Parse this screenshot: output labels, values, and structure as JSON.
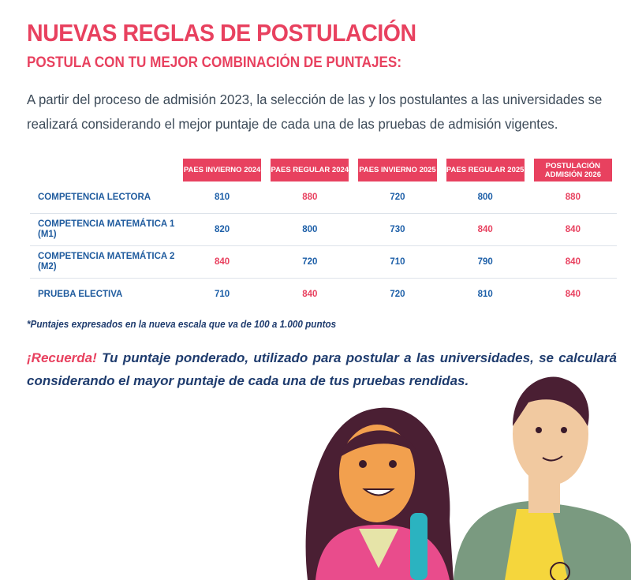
{
  "header": {
    "title": "NUEVAS REGLAS DE POSTULACIÓN",
    "subtitle": "POSTULA CON TU MEJOR COMBINACIÓN DE PUNTAJES:"
  },
  "intro": "A partir del proceso de admisión 2023, la selección de las y los postulantes a las universidades se realizará considerando el mejor puntaje de cada una de las pruebas de admisión vigentes.",
  "table": {
    "columns": [
      "PAES INVIERNO 2024",
      "PAES REGULAR 2024",
      "PAES INVIERNO 2025",
      "PAES REGULAR 2025",
      "POSTULACIÓN ADMISIÓN 2026"
    ],
    "rows": [
      {
        "label": "COMPETENCIA  LECTORA",
        "values": [
          810,
          880,
          720,
          800,
          880
        ]
      },
      {
        "label": "COMPETENCIA MATEMÁTICA 1 (M1)",
        "values": [
          820,
          800,
          730,
          840,
          840
        ]
      },
      {
        "label": "COMPETENCIA MATEMÁTICA 2 (M2)",
        "values": [
          840,
          720,
          710,
          790,
          840
        ]
      },
      {
        "label": "PRUEBA ELECTIVA",
        "values": [
          710,
          840,
          720,
          810,
          840
        ]
      }
    ],
    "highlight_color": "#e8415f",
    "value_color": "#1d5fa8"
  },
  "footnote": "*Puntajes expresados en la nueva escala que va de 100 a 1.000 puntos",
  "reminder": {
    "lead": "¡Recuerda!",
    "text": "Tu puntaje ponderado, utilizado para postular a las universidades, se calculará considerando el mayor puntaje de cada una de tus pruebas rendidas."
  }
}
